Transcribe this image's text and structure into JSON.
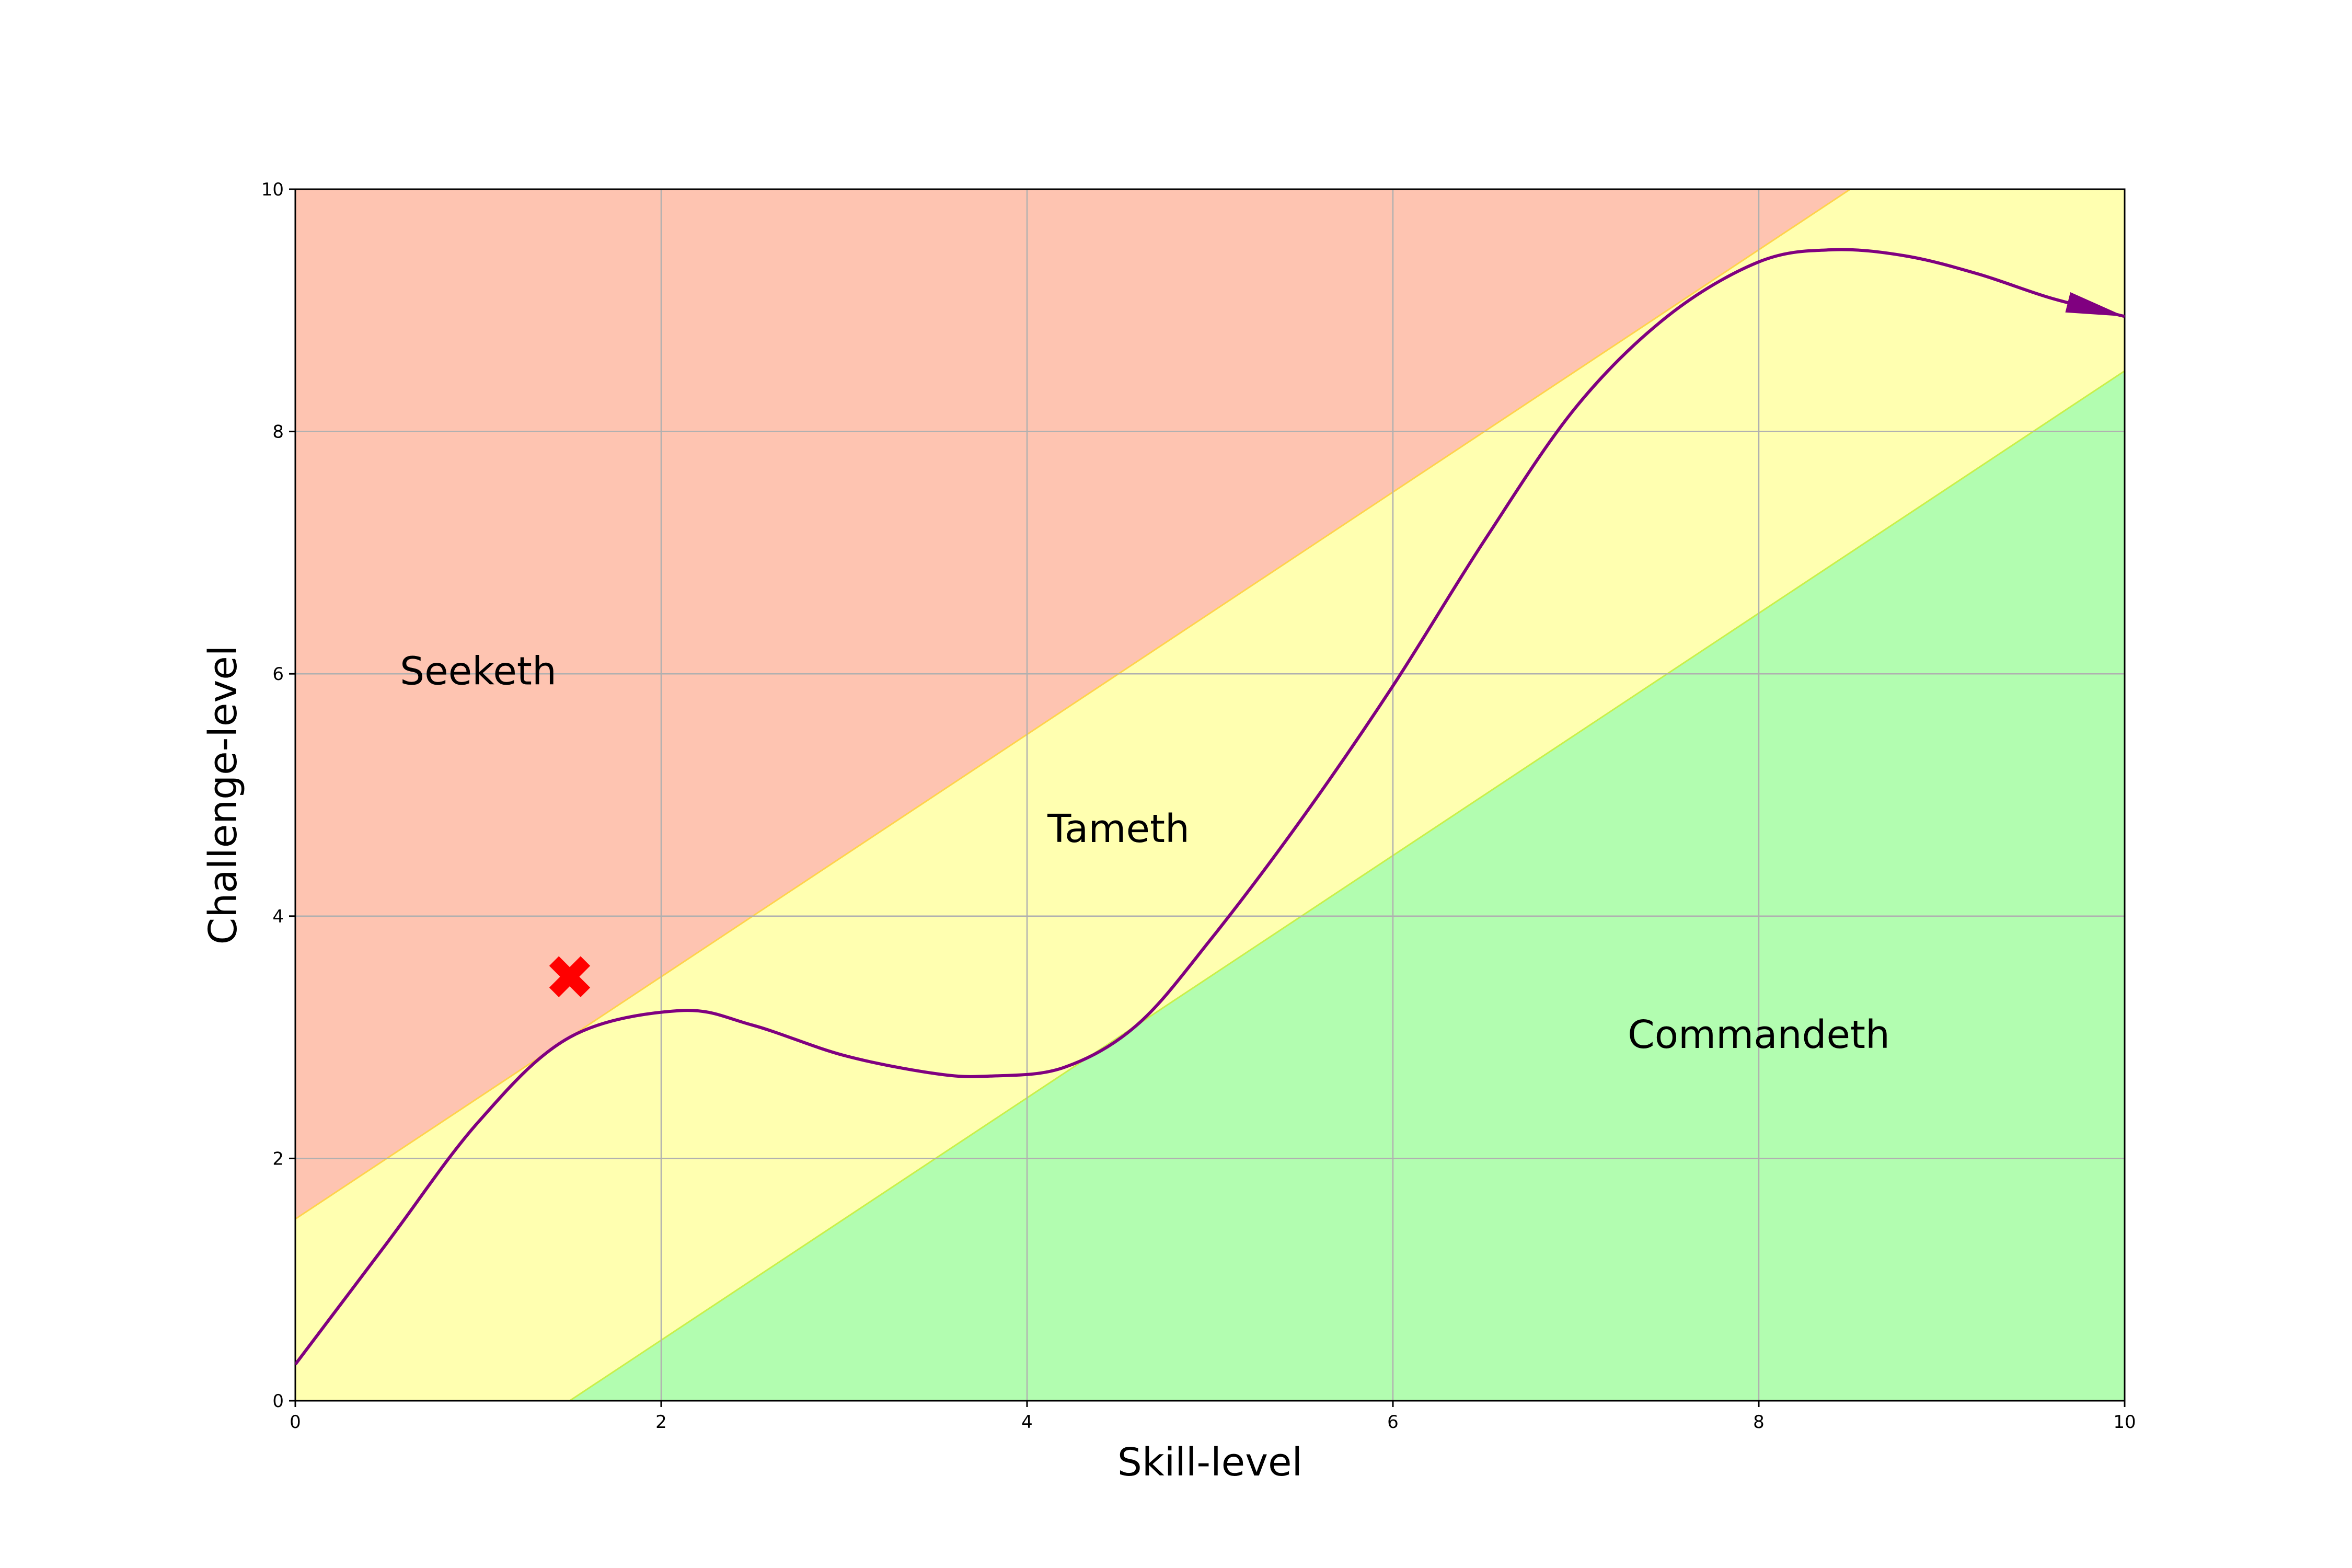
{
  "chart_data": {
    "type": "area",
    "xlabel": "Skill-level",
    "ylabel": "Challenge-level",
    "xlim": [
      0,
      10
    ],
    "ylim": [
      0,
      10
    ],
    "x_ticks": [
      "0",
      "2",
      "4",
      "6",
      "8",
      "10"
    ],
    "y_ticks": [
      "0",
      "2",
      "4",
      "6",
      "8",
      "10"
    ],
    "grid": true,
    "colors": {
      "seeketh": "#fec4b1",
      "tameth": "#ffffb0",
      "commandeth": "#b2fdb0",
      "upper_boundary": "#ffd24d",
      "lower_boundary": "#c8f04a",
      "path": "#800080",
      "marker": "#ff0000",
      "grid": "#b0b0b0"
    },
    "regions": [
      {
        "name": "Seeketh",
        "label_at": [
          1.0,
          6.0
        ]
      },
      {
        "name": "Tameth",
        "label_at": [
          4.5,
          4.7
        ]
      },
      {
        "name": "Commandeth",
        "label_at": [
          8.0,
          3.0
        ]
      }
    ],
    "boundaries": [
      {
        "between": "Seeketh/Tameth",
        "x": [
          0,
          8.5
        ],
        "y": [
          1.5,
          10
        ]
      },
      {
        "between": "Tameth/Commandeth",
        "x": [
          1.5,
          10
        ],
        "y": [
          0,
          8.5
        ]
      }
    ],
    "path": {
      "x": [
        0,
        0.5,
        1.0,
        1.5,
        2.1,
        2.5,
        3.0,
        3.5,
        3.8,
        4.2,
        4.6,
        5.0,
        5.5,
        6.0,
        6.5,
        7.0,
        7.5,
        8.0,
        8.4,
        8.8,
        9.2,
        9.6,
        10.0
      ],
      "y": [
        0.3,
        1.3,
        2.3,
        3.0,
        3.22,
        3.1,
        2.85,
        2.7,
        2.68,
        2.75,
        3.1,
        3.8,
        4.8,
        5.9,
        7.1,
        8.2,
        8.95,
        9.4,
        9.5,
        9.45,
        9.3,
        9.1,
        8.95
      ],
      "arrow_end": [
        10.0,
        8.95
      ]
    },
    "marker": {
      "shape": "x",
      "x": 1.5,
      "y": 3.5
    }
  }
}
